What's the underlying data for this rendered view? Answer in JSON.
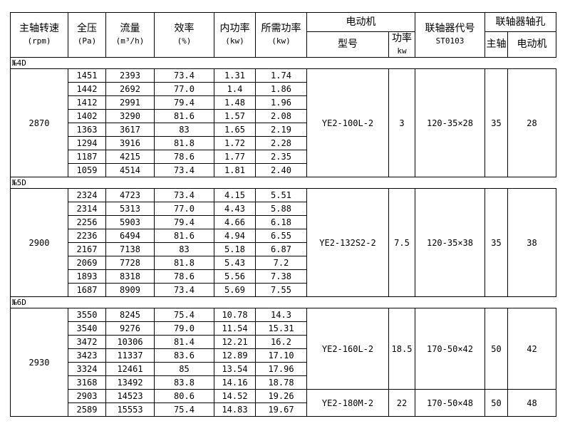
{
  "header": {
    "speed": "主轴转速",
    "speed_unit": "(rpm)",
    "pressure": "全压",
    "pressure_unit": "(Pa)",
    "flow": "流量",
    "flow_unit": "(m³/h)",
    "eff": "效率",
    "eff_unit": "(%)",
    "inner_power": "内功率",
    "inner_power_unit": "(kw)",
    "req_power": "所需功率",
    "req_power_unit": "(kw)",
    "motor": "电动机",
    "motor_model": "型号",
    "motor_power": "功率",
    "motor_power_unit": "kw",
    "coupling": "联轴器代号",
    "coupling_code": "ST0103",
    "bore": "联轴器轴孔",
    "bore_main": "主轴",
    "bore_motor": "电动机"
  },
  "groups": [
    {
      "label": "№4D",
      "speed": "2870",
      "rows": [
        [
          "1451",
          "2393",
          "73.4",
          "1.31",
          "1.74"
        ],
        [
          "1442",
          "2692",
          "77.0",
          "1.4",
          "1.86"
        ],
        [
          "1412",
          "2991",
          "79.4",
          "1.48",
          "1.96"
        ],
        [
          "1402",
          "3290",
          "81.6",
          "1.57",
          "2.08"
        ],
        [
          "1363",
          "3617",
          "83",
          "1.65",
          "2.19"
        ],
        [
          "1294",
          "3916",
          "81.8",
          "1.72",
          "2.28"
        ],
        [
          "1187",
          "4215",
          "78.6",
          "1.77",
          "2.35"
        ],
        [
          "1059",
          "4514",
          "73.4",
          "1.81",
          "2.40"
        ]
      ],
      "motors": [
        {
          "model": "YE2-100L-2",
          "power": "3",
          "coupling": "120-35×28",
          "main": "35",
          "motor": "28"
        }
      ]
    },
    {
      "label": "№5D",
      "speed": "2900",
      "rows": [
        [
          "2324",
          "4723",
          "73.4",
          "4.15",
          "5.51"
        ],
        [
          "2314",
          "5313",
          "77.0",
          "4.43",
          "5.88"
        ],
        [
          "2256",
          "5903",
          "79.4",
          "4.66",
          "6.18"
        ],
        [
          "2236",
          "6494",
          "81.6",
          "4.94",
          "6.55"
        ],
        [
          "2167",
          "7138",
          "83",
          "5.18",
          "6.87"
        ],
        [
          "2069",
          "7728",
          "81.8",
          "5.43",
          "7.2"
        ],
        [
          "1893",
          "8318",
          "78.6",
          "5.56",
          "7.38"
        ],
        [
          "1687",
          "8909",
          "73.4",
          "5.69",
          "7.55"
        ]
      ],
      "motors": [
        {
          "model": "YE2-132S2-2",
          "power": "7.5",
          "coupling": "120-35×38",
          "main": "35",
          "motor": "38"
        }
      ]
    },
    {
      "label": "№6D",
      "speed": "2930",
      "rows": [
        [
          "3550",
          "8245",
          "75.4",
          "10.78",
          "14.3"
        ],
        [
          "3540",
          "9276",
          "79.0",
          "11.54",
          "15.31"
        ],
        [
          "3472",
          "10306",
          "81.4",
          "12.21",
          "16.2"
        ],
        [
          "3423",
          "11337",
          "83.6",
          "12.89",
          "17.10"
        ],
        [
          "3324",
          "12461",
          "85",
          "13.54",
          "17.96"
        ],
        [
          "3168",
          "13492",
          "83.8",
          "14.16",
          "18.78"
        ],
        [
          "2903",
          "14523",
          "80.6",
          "14.52",
          "19.26"
        ],
        [
          "2589",
          "15553",
          "75.4",
          "14.83",
          "19.67"
        ]
      ],
      "motors": [
        {
          "model": "YE2-160L-2",
          "power": "18.5",
          "coupling": "170-50×42",
          "main": "50",
          "motor": "42"
        },
        {
          "model": "YE2-180M-2",
          "power": "22",
          "coupling": "170-50×48",
          "main": "50",
          "motor": "48"
        }
      ]
    }
  ]
}
